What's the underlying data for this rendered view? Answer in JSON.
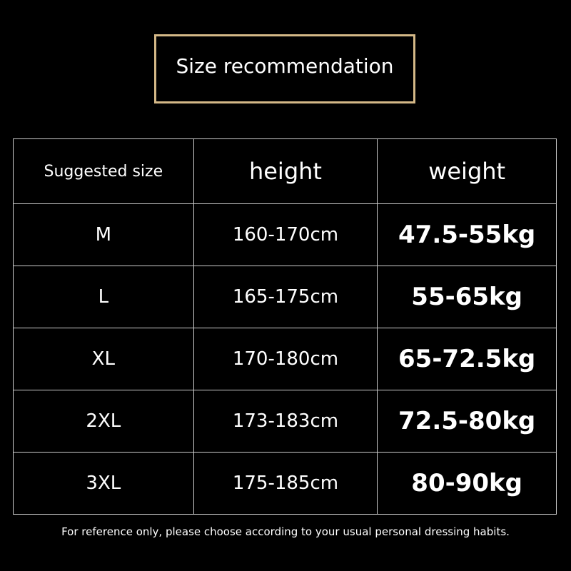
{
  "header": {
    "title": "Size recommendation"
  },
  "table": {
    "headers": [
      "Suggested size",
      "height",
      "weight"
    ],
    "rows": [
      [
        "M",
        "160-170cm",
        "47.5-55kg"
      ],
      [
        "L",
        "165-175cm",
        "55-65kg"
      ],
      [
        "XL",
        "170-180cm",
        "65-72.5kg"
      ],
      [
        "2XL",
        "173-183cm",
        "72.5-80kg"
      ],
      [
        "3XL",
        "175-185cm",
        "80-90kg"
      ]
    ]
  },
  "footer": {
    "note": "For reference only, please choose according to your usual personal dressing habits."
  }
}
